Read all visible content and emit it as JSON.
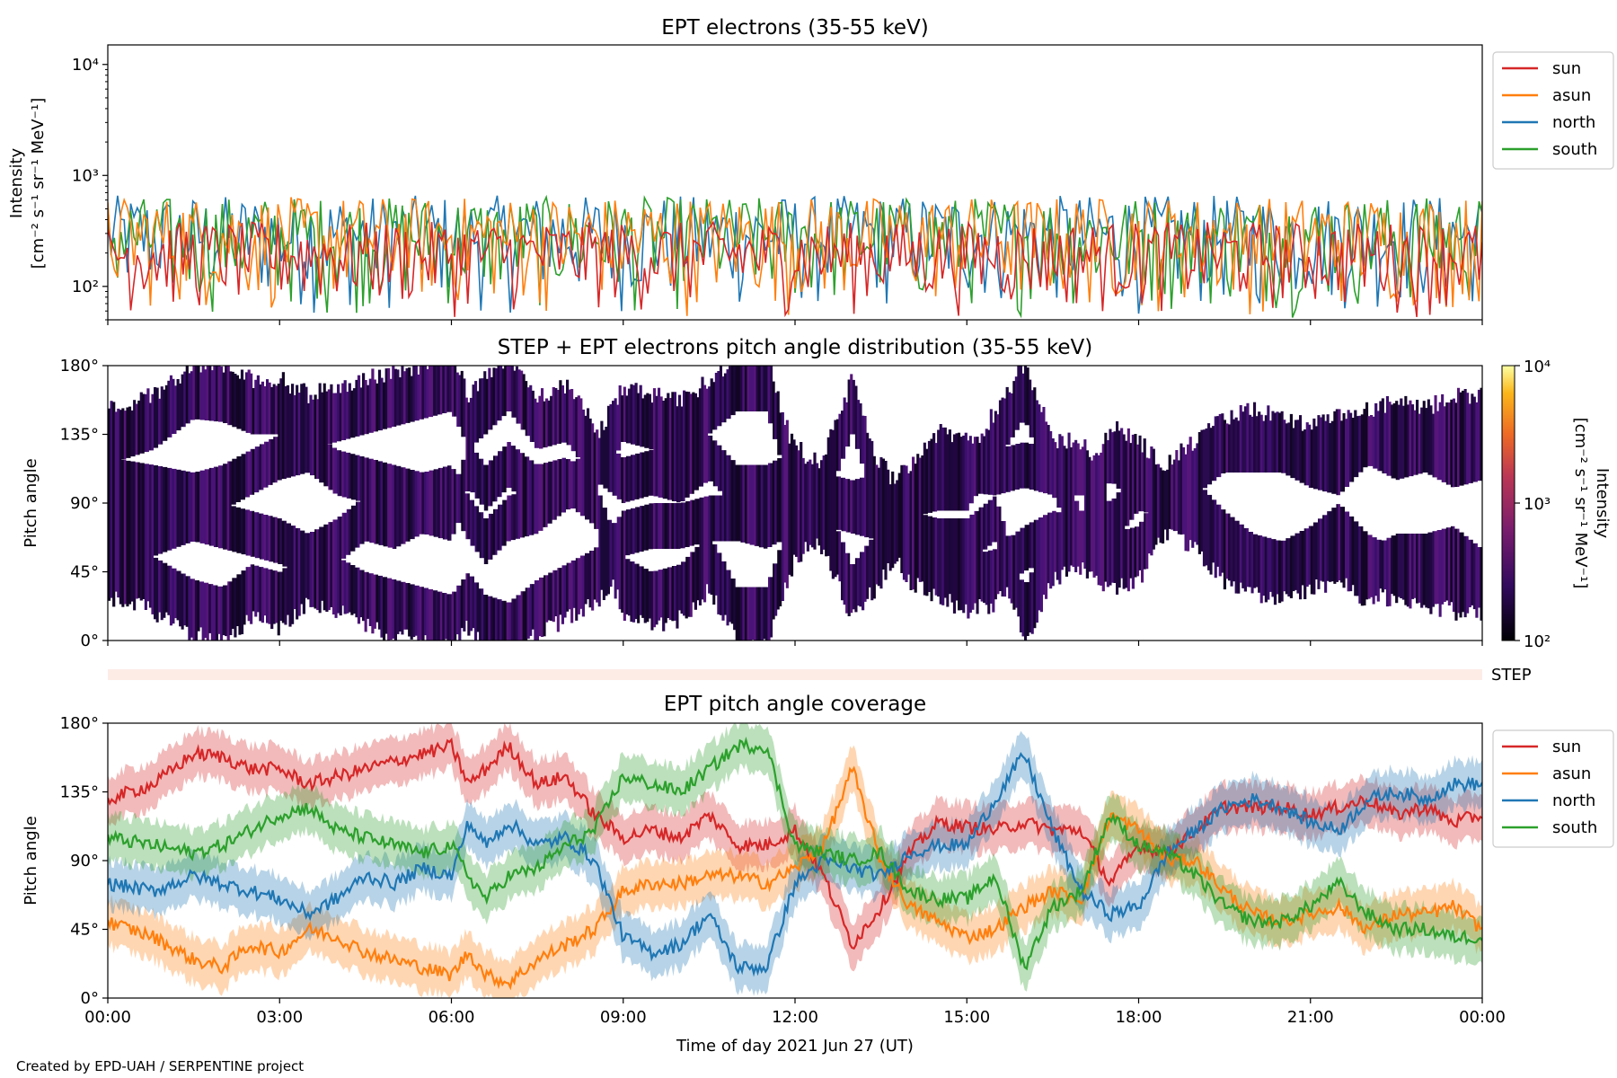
{
  "footer": {
    "credit": "Created by EPD-UAH / SERPENTINE project"
  },
  "colors": {
    "sun": "#d62728",
    "asun": "#ff7f0e",
    "north": "#1f77b4",
    "south": "#2ca02c",
    "step_band": "#fdece6"
  },
  "chart_data": [
    {
      "id": "intensity",
      "type": "line",
      "title": "EPT electrons (35-55 keV)",
      "ylabel": "Intensity",
      "yunit": "[cm⁻² s⁻¹ sr⁻¹ MeV⁻¹]",
      "yscale": "log",
      "ylim": [
        50,
        15000
      ],
      "yticks": [
        {
          "value": 100,
          "label": "10²"
        },
        {
          "value": 1000,
          "label": "10³"
        },
        {
          "value": 10000,
          "label": "10⁴"
        }
      ],
      "xlim": [
        0,
        24
      ],
      "legend": {
        "placement": "outside-right",
        "entries": [
          "sun",
          "asun",
          "north",
          "south"
        ]
      },
      "series": [
        {
          "name": "north",
          "color_key": "north",
          "typical_peak": 450,
          "range": [
            50,
            660
          ]
        },
        {
          "name": "south",
          "color_key": "south",
          "typical_peak": 420,
          "range": [
            50,
            640
          ]
        },
        {
          "name": "asun",
          "color_key": "asun",
          "typical_peak": 380,
          "range": [
            50,
            640
          ]
        },
        {
          "name": "sun",
          "color_key": "sun",
          "typical_peak": 250,
          "range": [
            50,
            380
          ]
        }
      ]
    },
    {
      "id": "pad",
      "type": "heatmap",
      "title": "STEP + EPT electrons pitch angle distribution (35-55 keV)",
      "ylabel": "Pitch angle",
      "ylim": [
        0,
        180
      ],
      "yticks": [
        {
          "value": 0,
          "label": "0°"
        },
        {
          "value": 45,
          "label": "45°"
        },
        {
          "value": 90,
          "label": "90°"
        },
        {
          "value": 135,
          "label": "135°"
        },
        {
          "value": 180,
          "label": "180°"
        }
      ],
      "xlim": [
        0,
        24
      ],
      "colorbar": {
        "label": "Intensity",
        "unit": "[cm⁻² s⁻¹ sr⁻¹ MeV⁻¹]",
        "scale": "log",
        "range": [
          100,
          10000
        ],
        "ticks": [
          {
            "value": 100,
            "label": "10²"
          },
          {
            "value": 1000,
            "label": "10³"
          },
          {
            "value": 10000,
            "label": "10⁴"
          }
        ]
      },
      "step_label": "STEP"
    },
    {
      "id": "coverage",
      "type": "line",
      "title": "EPT pitch angle coverage",
      "ylabel": "Pitch angle",
      "xlabel": "Time of day 2021 Jun 27 (UT)",
      "ylim": [
        0,
        180
      ],
      "yticks": [
        {
          "value": 0,
          "label": "0°"
        },
        {
          "value": 45,
          "label": "45°"
        },
        {
          "value": 90,
          "label": "90°"
        },
        {
          "value": 135,
          "label": "135°"
        },
        {
          "value": 180,
          "label": "180°"
        }
      ],
      "xlim": [
        0,
        24
      ],
      "xticks": [
        {
          "value": 0,
          "label": "00:00"
        },
        {
          "value": 3,
          "label": "03:00"
        },
        {
          "value": 6,
          "label": "06:00"
        },
        {
          "value": 9,
          "label": "09:00"
        },
        {
          "value": 12,
          "label": "12:00"
        },
        {
          "value": 15,
          "label": "15:00"
        },
        {
          "value": 18,
          "label": "18:00"
        },
        {
          "value": 21,
          "label": "21:00"
        },
        {
          "value": 24,
          "label": "00:00"
        }
      ],
      "legend": {
        "placement": "outside-right",
        "entries": [
          "sun",
          "asun",
          "north",
          "south"
        ]
      },
      "band_halfwidth": 15,
      "series": [
        {
          "name": "sun",
          "color_key": "sun",
          "x": [
            0,
            0.8,
            1.5,
            2,
            2.5,
            3,
            3.5,
            4,
            4.5,
            5,
            5.5,
            6,
            6.3,
            6.6,
            7,
            7.5,
            8,
            8.5,
            9,
            9.5,
            10,
            10.5,
            11,
            11.5,
            12,
            12.5,
            13,
            13.5,
            14,
            14.5,
            15,
            15.5,
            16,
            16.5,
            17,
            17.5,
            18,
            18.5,
            19,
            19.5,
            20,
            20.5,
            21,
            21.5,
            22,
            22.5,
            23,
            23.5,
            24
          ],
          "y": [
            130,
            140,
            160,
            158,
            150,
            150,
            140,
            145,
            150,
            155,
            160,
            165,
            140,
            150,
            165,
            140,
            145,
            120,
            105,
            110,
            105,
            120,
            100,
            100,
            110,
            80,
            35,
            60,
            95,
            115,
            112,
            110,
            115,
            110,
            110,
            75,
            100,
            95,
            110,
            125,
            125,
            125,
            120,
            125,
            130,
            120,
            125,
            115,
            120
          ]
        },
        {
          "name": "asun",
          "color_key": "asun",
          "x": [
            0,
            0.8,
            1.5,
            2,
            2.5,
            3,
            3.5,
            4,
            4.5,
            5,
            5.5,
            6,
            6.3,
            6.6,
            7,
            7.5,
            8,
            8.5,
            9,
            9.5,
            10,
            10.5,
            11,
            11.5,
            12,
            12.5,
            13,
            13.5,
            14,
            14.5,
            15,
            15.5,
            16,
            16.5,
            17,
            17.5,
            18,
            18.5,
            19,
            19.5,
            20,
            20.5,
            21,
            21.5,
            22,
            22.5,
            23,
            23.5,
            24
          ],
          "y": [
            50,
            40,
            25,
            20,
            35,
            30,
            45,
            40,
            30,
            25,
            20,
            15,
            30,
            15,
            10,
            25,
            35,
            45,
            70,
            75,
            75,
            80,
            80,
            75,
            85,
            100,
            150,
            90,
            60,
            50,
            40,
            45,
            60,
            70,
            65,
            120,
            110,
            90,
            90,
            70,
            55,
            50,
            55,
            60,
            45,
            55,
            55,
            60,
            45
          ]
        },
        {
          "name": "north",
          "color_key": "north",
          "x": [
            0,
            0.8,
            1.5,
            2,
            2.5,
            3,
            3.5,
            4,
            4.5,
            5,
            5.5,
            6,
            6.3,
            6.6,
            7,
            7.5,
            8,
            8.5,
            9,
            9.5,
            10,
            10.5,
            11,
            11.5,
            12,
            12.5,
            13,
            13.5,
            14,
            14.5,
            15,
            15.5,
            16,
            16.5,
            17,
            17.5,
            18,
            18.5,
            19,
            19.5,
            20,
            20.5,
            21,
            21.5,
            22,
            22.5,
            23,
            23.5,
            24
          ],
          "y": [
            75,
            70,
            80,
            75,
            70,
            65,
            55,
            65,
            80,
            75,
            85,
            80,
            115,
            100,
            115,
            100,
            105,
            90,
            40,
            30,
            35,
            55,
            20,
            20,
            75,
            90,
            85,
            80,
            95,
            100,
            100,
            130,
            160,
            110,
            70,
            55,
            60,
            95,
            110,
            125,
            130,
            125,
            115,
            110,
            130,
            135,
            130,
            140,
            140
          ]
        },
        {
          "name": "south",
          "color_key": "south",
          "x": [
            0,
            0.8,
            1.5,
            2,
            2.5,
            3,
            3.5,
            4,
            4.5,
            5,
            5.5,
            6,
            6.3,
            6.6,
            7,
            7.5,
            8,
            8.5,
            9,
            9.5,
            10,
            10.5,
            11,
            11.5,
            12,
            12.5,
            13,
            13.5,
            14,
            14.5,
            15,
            15.5,
            16,
            16.5,
            17,
            17.5,
            18,
            18.5,
            19,
            19.5,
            20,
            20.5,
            21,
            21.5,
            22,
            22.5,
            23,
            23.5,
            24
          ],
          "y": [
            105,
            100,
            95,
            100,
            110,
            120,
            125,
            110,
            105,
            100,
            95,
            100,
            80,
            65,
            80,
            85,
            100,
            110,
            145,
            140,
            135,
            150,
            165,
            165,
            100,
            95,
            90,
            95,
            70,
            65,
            65,
            80,
            20,
            60,
            70,
            120,
            100,
            95,
            80,
            60,
            50,
            50,
            60,
            75,
            55,
            45,
            45,
            40,
            40
          ]
        }
      ]
    }
  ]
}
